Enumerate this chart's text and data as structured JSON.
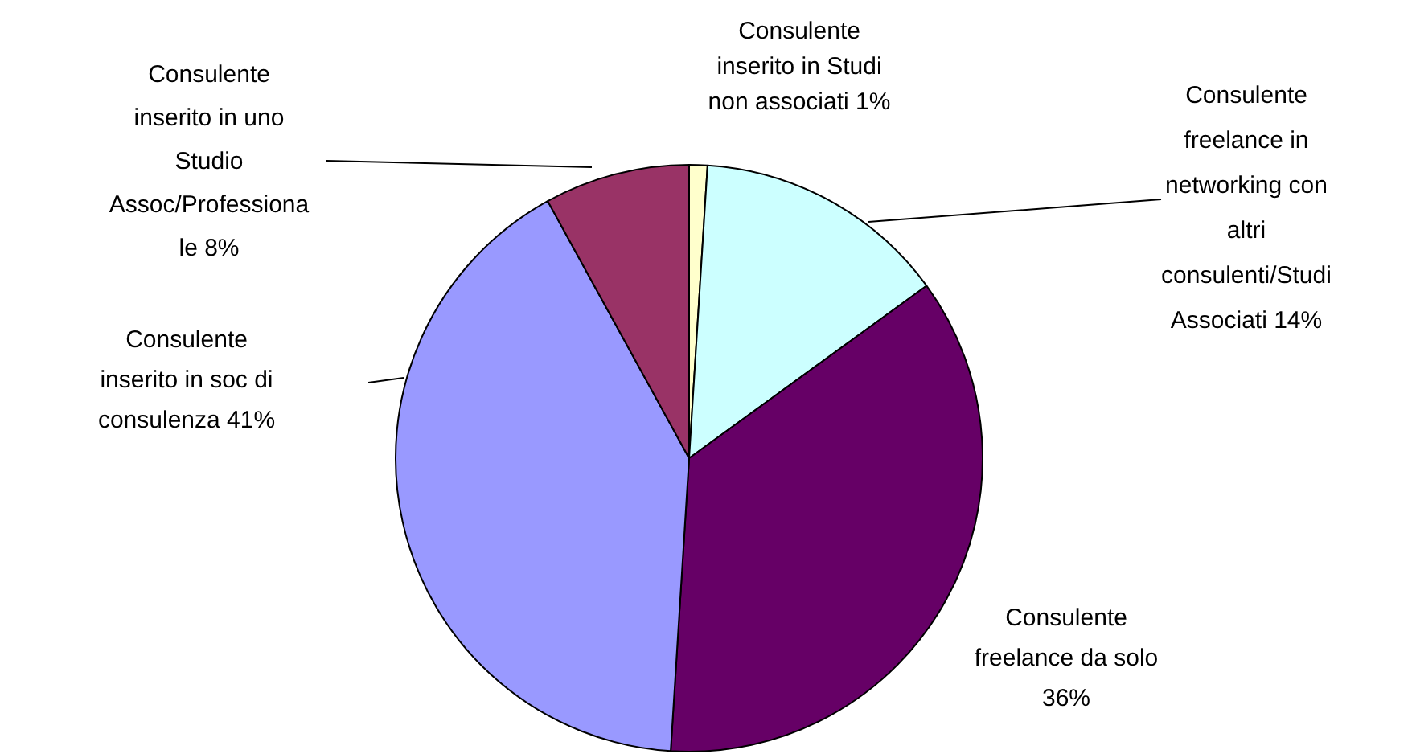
{
  "chart_data": {
    "type": "pie",
    "categories": [
      "Consulente\ninserito in Studi\nnon associati",
      "Consulente\nfreelance in\nnetworking con\naltri\nconsulenti/Studi\nAssociati",
      "Consulente\nfreelance da solo\n",
      "Consulente\ninserito in soc di\nconsulenza",
      "Consulente\ninserito in uno\nStudio\nAssoc/Professiona\nle"
    ],
    "values": [
      1,
      14,
      36,
      41,
      8
    ],
    "colors": [
      "#ffffcc",
      "#ccffff",
      "#660066",
      "#9999ff",
      "#993366"
    ],
    "value_labels": [
      "1%",
      "14%",
      "36%",
      "41%",
      "8%"
    ],
    "legend": false
  }
}
